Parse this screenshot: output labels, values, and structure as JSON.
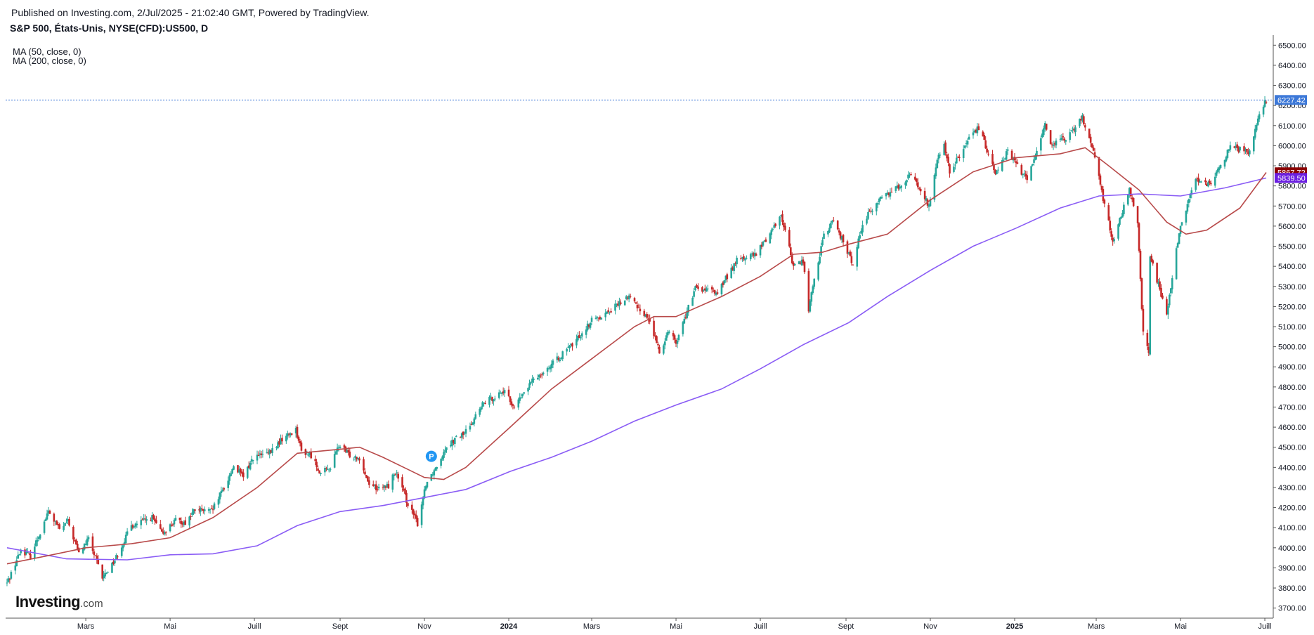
{
  "header": {
    "published": "Published on Investing.com, 2/Jul/2025 - 21:02:40 GMT, Powered by TradingView.",
    "symbol": "S&P 500, États-Unis, NYSE(CFD):US500, D",
    "indicators": [
      "MA (50, close, 0)",
      "MA (200, close, 0)"
    ]
  },
  "logo": {
    "name": "Investing",
    "suffix": ".com"
  },
  "colors": {
    "up": "#26a69a",
    "down": "#c62828",
    "ma50": "#b84a4a",
    "ma200": "#8a5cf5",
    "last_badge": "#3c78d8",
    "ma50_badge": "#8b0000",
    "ma200_badge": "#6a1ee0",
    "p_marker": "#2196f3"
  },
  "chart_data": {
    "type": "candlestick",
    "y_axis": {
      "min": 3650,
      "max": 6550,
      "step": 100,
      "position": "right",
      "ticks": [
        "3700.00",
        "3800.00",
        "3900.00",
        "4000.00",
        "4100.00",
        "4200.00",
        "4300.00",
        "4400.00",
        "4500.00",
        "4600.00",
        "4700.00",
        "4800.00",
        "4900.00",
        "5000.00",
        "5100.00",
        "5200.00",
        "5300.00",
        "5400.00",
        "5500.00",
        "5600.00",
        "5700.00",
        "5800.00",
        "5900.00",
        "6000.00",
        "6100.00",
        "6200.00",
        "6300.00",
        "6400.00",
        "6500.00"
      ]
    },
    "x_axis": {
      "ticks": [
        {
          "label": "Mars",
          "date": "2023-03-01",
          "bold": false
        },
        {
          "label": "Mai",
          "date": "2023-05-01",
          "bold": false
        },
        {
          "label": "Juill",
          "date": "2023-07-01",
          "bold": false
        },
        {
          "label": "Sept",
          "date": "2023-09-01",
          "bold": false
        },
        {
          "label": "Nov",
          "date": "2023-11-01",
          "bold": false
        },
        {
          "label": "2024",
          "date": "2024-01-01",
          "bold": true
        },
        {
          "label": "Mars",
          "date": "2024-03-01",
          "bold": false
        },
        {
          "label": "Mai",
          "date": "2024-05-01",
          "bold": false
        },
        {
          "label": "Juill",
          "date": "2024-07-01",
          "bold": false
        },
        {
          "label": "Sept",
          "date": "2024-09-01",
          "bold": false
        },
        {
          "label": "Nov",
          "date": "2024-11-01",
          "bold": false
        },
        {
          "label": "2025",
          "date": "2025-01-01",
          "bold": true
        },
        {
          "label": "Mars",
          "date": "2025-03-01",
          "bold": false
        },
        {
          "label": "Mai",
          "date": "2025-05-01",
          "bold": false
        },
        {
          "label": "Juill",
          "date": "2025-07-01",
          "bold": false
        }
      ]
    },
    "price_path": [
      [
        "2023-01-03",
        3824
      ],
      [
        "2023-01-13",
        3990
      ],
      [
        "2023-01-20",
        3960
      ],
      [
        "2023-02-02",
        4180
      ],
      [
        "2023-02-10",
        4090
      ],
      [
        "2023-02-16",
        4130
      ],
      [
        "2023-02-24",
        3970
      ],
      [
        "2023-03-03",
        4045
      ],
      [
        "2023-03-13",
        3850
      ],
      [
        "2023-03-22",
        3940
      ],
      [
        "2023-04-03",
        4110
      ],
      [
        "2023-04-18",
        4150
      ],
      [
        "2023-04-25",
        4070
      ],
      [
        "2023-05-05",
        4135
      ],
      [
        "2023-05-12",
        4125
      ],
      [
        "2023-05-19",
        4190
      ],
      [
        "2023-05-31",
        4180
      ],
      [
        "2023-06-12",
        4340
      ],
      [
        "2023-06-16",
        4410
      ],
      [
        "2023-06-23",
        4350
      ],
      [
        "2023-06-30",
        4450
      ],
      [
        "2023-07-12",
        4470
      ],
      [
        "2023-07-21",
        4540
      ],
      [
        "2023-07-31",
        4590
      ],
      [
        "2023-08-04",
        4480
      ],
      [
        "2023-08-11",
        4460
      ],
      [
        "2023-08-18",
        4370
      ],
      [
        "2023-08-25",
        4400
      ],
      [
        "2023-08-31",
        4510
      ],
      [
        "2023-09-08",
        4460
      ],
      [
        "2023-09-15",
        4450
      ],
      [
        "2023-09-21",
        4330
      ],
      [
        "2023-09-29",
        4290
      ],
      [
        "2023-10-06",
        4310
      ],
      [
        "2023-10-11",
        4380
      ],
      [
        "2023-10-20",
        4220
      ],
      [
        "2023-10-27",
        4120
      ],
      [
        "2023-11-02",
        4320
      ],
      [
        "2023-11-10",
        4410
      ],
      [
        "2023-11-17",
        4510
      ],
      [
        "2023-11-30",
        4570
      ],
      [
        "2023-12-14",
        4720
      ],
      [
        "2023-12-28",
        4780
      ],
      [
        "2024-01-05",
        4700
      ],
      [
        "2024-01-19",
        4840
      ],
      [
        "2024-02-01",
        4910
      ],
      [
        "2024-02-16",
        5010
      ],
      [
        "2024-03-01",
        5130
      ],
      [
        "2024-03-12",
        5170
      ],
      [
        "2024-03-28",
        5250
      ],
      [
        "2024-04-12",
        5130
      ],
      [
        "2024-04-19",
        4970
      ],
      [
        "2024-04-26",
        5090
      ],
      [
        "2024-05-01",
        5020
      ],
      [
        "2024-05-15",
        5290
      ],
      [
        "2024-05-31",
        5270
      ],
      [
        "2024-06-14",
        5430
      ],
      [
        "2024-06-28",
        5460
      ],
      [
        "2024-07-12",
        5610
      ],
      [
        "2024-07-16",
        5660
      ],
      [
        "2024-07-25",
        5400
      ],
      [
        "2024-08-01",
        5430
      ],
      [
        "2024-08-05",
        5180
      ],
      [
        "2024-08-09",
        5340
      ],
      [
        "2024-08-16",
        5550
      ],
      [
        "2024-08-23",
        5630
      ],
      [
        "2024-09-06",
        5410
      ],
      [
        "2024-09-13",
        5620
      ],
      [
        "2024-09-26",
        5740
      ],
      [
        "2024-10-11",
        5810
      ],
      [
        "2024-10-18",
        5860
      ],
      [
        "2024-10-31",
        5700
      ],
      [
        "2024-11-06",
        5930
      ],
      [
        "2024-11-11",
        6000
      ],
      [
        "2024-11-15",
        5870
      ],
      [
        "2024-11-29",
        6030
      ],
      [
        "2024-12-06",
        6090
      ],
      [
        "2024-12-18",
        5870
      ],
      [
        "2024-12-27",
        5970
      ],
      [
        "2025-01-10",
        5830
      ],
      [
        "2025-01-23",
        6110
      ],
      [
        "2025-01-27",
        6010
      ],
      [
        "2025-02-07",
        6030
      ],
      [
        "2025-02-19",
        6140
      ],
      [
        "2025-02-28",
        5950
      ],
      [
        "2025-03-06",
        5740
      ],
      [
        "2025-03-13",
        5520
      ],
      [
        "2025-03-25",
        5780
      ],
      [
        "2025-03-31",
        5600
      ],
      [
        "2025-04-04",
        5070
      ],
      [
        "2025-04-08",
        4980
      ],
      [
        "2025-04-09",
        5450
      ],
      [
        "2025-04-21",
        5160
      ],
      [
        "2025-04-30",
        5570
      ],
      [
        "2025-05-12",
        5840
      ],
      [
        "2025-05-23",
        5800
      ],
      [
        "2025-06-06",
        6000
      ],
      [
        "2025-06-13",
        5980
      ],
      [
        "2025-06-20",
        5970
      ],
      [
        "2025-06-27",
        6170
      ],
      [
        "2025-07-02",
        6227
      ]
    ],
    "ma50": [
      [
        "2023-01-03",
        3920
      ],
      [
        "2023-02-01",
        3960
      ],
      [
        "2023-03-01",
        4000
      ],
      [
        "2023-04-03",
        4020
      ],
      [
        "2023-05-01",
        4050
      ],
      [
        "2023-06-01",
        4150
      ],
      [
        "2023-07-03",
        4300
      ],
      [
        "2023-08-01",
        4470
      ],
      [
        "2023-09-01",
        4490
      ],
      [
        "2023-09-15",
        4500
      ],
      [
        "2023-10-02",
        4450
      ],
      [
        "2023-10-20",
        4390
      ],
      [
        "2023-11-01",
        4350
      ],
      [
        "2023-11-15",
        4340
      ],
      [
        "2023-12-01",
        4400
      ],
      [
        "2024-01-02",
        4600
      ],
      [
        "2024-02-01",
        4790
      ],
      [
        "2024-03-01",
        4940
      ],
      [
        "2024-04-01",
        5100
      ],
      [
        "2024-04-15",
        5150
      ],
      [
        "2024-05-01",
        5150
      ],
      [
        "2024-06-03",
        5250
      ],
      [
        "2024-07-01",
        5350
      ],
      [
        "2024-07-25",
        5460
      ],
      [
        "2024-08-15",
        5470
      ],
      [
        "2024-09-03",
        5510
      ],
      [
        "2024-10-01",
        5560
      ],
      [
        "2024-11-01",
        5730
      ],
      [
        "2024-12-02",
        5870
      ],
      [
        "2025-01-02",
        5940
      ],
      [
        "2025-02-03",
        5960
      ],
      [
        "2025-02-21",
        5990
      ],
      [
        "2025-03-10",
        5900
      ],
      [
        "2025-04-01",
        5780
      ],
      [
        "2025-04-21",
        5620
      ],
      [
        "2025-05-05",
        5560
      ],
      [
        "2025-05-20",
        5580
      ],
      [
        "2025-06-13",
        5690
      ],
      [
        "2025-07-02",
        5867
      ]
    ],
    "ma200": [
      [
        "2023-01-03",
        4000
      ],
      [
        "2023-02-15",
        3945
      ],
      [
        "2023-03-31",
        3940
      ],
      [
        "2023-05-01",
        3965
      ],
      [
        "2023-06-01",
        3970
      ],
      [
        "2023-07-03",
        4010
      ],
      [
        "2023-08-01",
        4110
      ],
      [
        "2023-09-01",
        4180
      ],
      [
        "2023-10-02",
        4210
      ],
      [
        "2023-11-01",
        4250
      ],
      [
        "2023-12-01",
        4290
      ],
      [
        "2024-01-02",
        4380
      ],
      [
        "2024-02-01",
        4450
      ],
      [
        "2024-03-01",
        4530
      ],
      [
        "2024-04-01",
        4630
      ],
      [
        "2024-05-01",
        4710
      ],
      [
        "2024-06-03",
        4790
      ],
      [
        "2024-07-01",
        4890
      ],
      [
        "2024-08-01",
        5010
      ],
      [
        "2024-09-03",
        5120
      ],
      [
        "2024-10-01",
        5250
      ],
      [
        "2024-11-01",
        5380
      ],
      [
        "2024-12-02",
        5500
      ],
      [
        "2025-01-02",
        5590
      ],
      [
        "2025-02-03",
        5690
      ],
      [
        "2025-03-03",
        5750
      ],
      [
        "2025-04-01",
        5760
      ],
      [
        "2025-05-01",
        5750
      ],
      [
        "2025-06-02",
        5790
      ],
      [
        "2025-07-02",
        5839.5
      ]
    ],
    "last_price": {
      "label": "6227.42",
      "value": 6227.42
    },
    "ma50_last": {
      "label": "5867.72",
      "value": 5867.72
    },
    "ma200_last": {
      "label": "5839.50",
      "value": 5839.5
    },
    "p_marker": {
      "label": "P",
      "date": "2023-11-06",
      "value": 4455
    },
    "grid": false
  }
}
